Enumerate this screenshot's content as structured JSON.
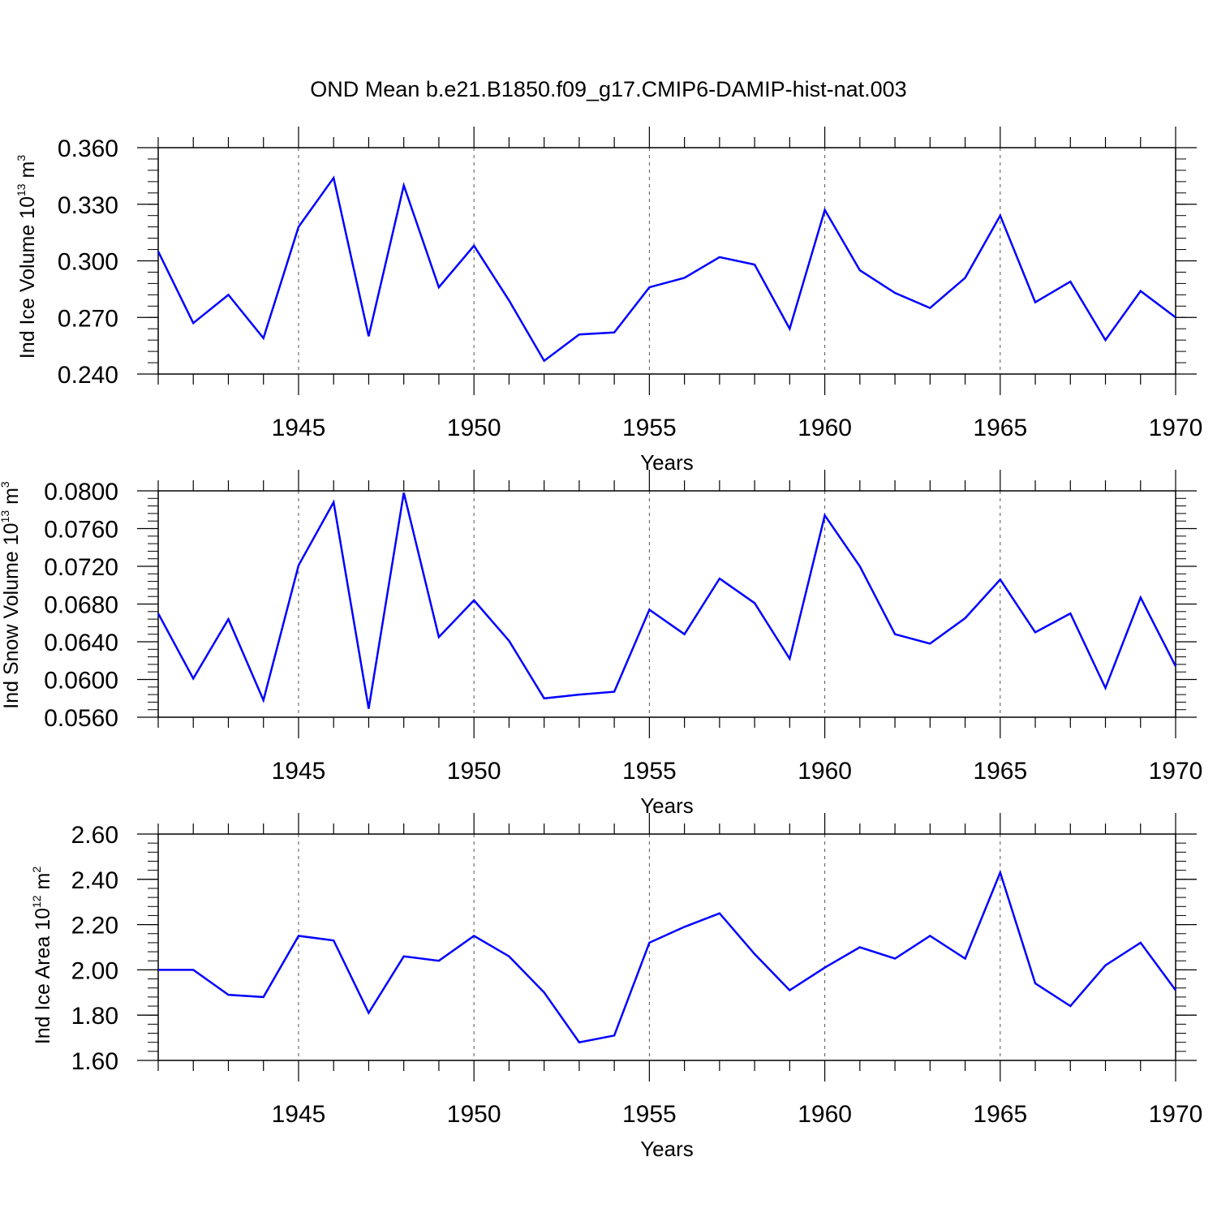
{
  "title": "OND Mean b.e21.B1850.f09_g17.CMIP6-DAMIP-hist-nat.003",
  "colors": {
    "line": "#0000ff",
    "axis": "#000000",
    "grid": "#555555"
  },
  "chart_data": [
    {
      "type": "line",
      "title": "OND Mean b.e21.B1850.f09_g17.CMIP6-DAMIP-hist-nat.003",
      "xlabel": "Years",
      "ylabel": {
        "prefix": "Ind Ice Volume 10",
        "exp": "13",
        "unit": " m",
        "unit_exp": "3"
      },
      "xlim": [
        1941,
        1970
      ],
      "ylim": [
        0.24,
        0.36
      ],
      "yticks": [
        "0.240",
        "0.270",
        "0.300",
        "0.330",
        "0.360"
      ],
      "yticks_values": [
        0.24,
        0.27,
        0.3,
        0.33,
        0.36
      ],
      "y_minor_step": 0.006,
      "xticks": [
        "1945",
        "1950",
        "1955",
        "1960",
        "1965",
        "1970"
      ],
      "xticks_values": [
        1945,
        1950,
        1955,
        1960,
        1965,
        1970
      ],
      "x": [
        1941,
        1942,
        1943,
        1944,
        1945,
        1946,
        1947,
        1948,
        1949,
        1950,
        1951,
        1952,
        1953,
        1954,
        1955,
        1956,
        1957,
        1958,
        1959,
        1960,
        1961,
        1962,
        1963,
        1964,
        1965,
        1966,
        1967,
        1968,
        1969,
        1970
      ],
      "values": [
        0.305,
        0.267,
        0.282,
        0.259,
        0.318,
        0.344,
        0.26,
        0.34,
        0.286,
        0.308,
        0.279,
        0.247,
        0.261,
        0.262,
        0.286,
        0.291,
        0.302,
        0.298,
        0.264,
        0.327,
        0.295,
        0.283,
        0.275,
        0.291,
        0.324,
        0.278,
        0.289,
        0.258,
        0.284,
        0.27
      ]
    },
    {
      "type": "line",
      "xlabel": "Years",
      "ylabel": {
        "prefix": "Ind Snow Volume 10",
        "exp": "13",
        "unit": " m",
        "unit_exp": "3"
      },
      "xlim": [
        1941,
        1970
      ],
      "ylim": [
        0.056,
        0.08
      ],
      "yticks": [
        "0.0560",
        "0.0600",
        "0.0640",
        "0.0680",
        "0.0720",
        "0.0760",
        "0.0800"
      ],
      "yticks_values": [
        0.056,
        0.06,
        0.064,
        0.068,
        0.072,
        0.076,
        0.08
      ],
      "y_minor_step": 0.0008,
      "xticks": [
        "1945",
        "1950",
        "1955",
        "1960",
        "1965",
        "1970"
      ],
      "xticks_values": [
        1945,
        1950,
        1955,
        1960,
        1965,
        1970
      ],
      "x": [
        1941,
        1942,
        1943,
        1944,
        1945,
        1946,
        1947,
        1948,
        1949,
        1950,
        1951,
        1952,
        1953,
        1954,
        1955,
        1956,
        1957,
        1958,
        1959,
        1960,
        1961,
        1962,
        1963,
        1964,
        1965,
        1966,
        1967,
        1968,
        1969,
        1970
      ],
      "values": [
        0.067,
        0.0601,
        0.0664,
        0.0578,
        0.0721,
        0.0788,
        0.0569,
        0.0798,
        0.0645,
        0.0684,
        0.0641,
        0.058,
        0.0584,
        0.0587,
        0.0674,
        0.0648,
        0.0707,
        0.0681,
        0.0622,
        0.0774,
        0.072,
        0.0648,
        0.0638,
        0.0665,
        0.0706,
        0.065,
        0.067,
        0.0591,
        0.0687,
        0.0614
      ]
    },
    {
      "type": "line",
      "xlabel": "Years",
      "ylabel": {
        "prefix": "Ind Ice Area 10",
        "exp": "12",
        "unit": " m",
        "unit_exp": "2"
      },
      "xlim": [
        1941,
        1970
      ],
      "ylim": [
        1.6,
        2.6
      ],
      "yticks": [
        "1.60",
        "1.80",
        "2.00",
        "2.20",
        "2.40",
        "2.60"
      ],
      "yticks_values": [
        1.6,
        1.8,
        2.0,
        2.2,
        2.4,
        2.6
      ],
      "y_minor_step": 0.04,
      "xticks": [
        "1945",
        "1950",
        "1955",
        "1960",
        "1965",
        "1970"
      ],
      "xticks_values": [
        1945,
        1950,
        1955,
        1960,
        1965,
        1970
      ],
      "x": [
        1941,
        1942,
        1943,
        1944,
        1945,
        1946,
        1947,
        1948,
        1949,
        1950,
        1951,
        1952,
        1953,
        1954,
        1955,
        1956,
        1957,
        1958,
        1959,
        1960,
        1961,
        1962,
        1963,
        1964,
        1965,
        1966,
        1967,
        1968,
        1969,
        1970
      ],
      "values": [
        2.0,
        2.0,
        1.89,
        1.88,
        2.15,
        2.13,
        1.81,
        2.06,
        2.04,
        2.15,
        2.06,
        1.9,
        1.68,
        1.71,
        2.12,
        2.19,
        2.25,
        2.07,
        1.91,
        2.01,
        2.1,
        2.05,
        2.15,
        2.05,
        2.43,
        1.94,
        1.84,
        2.02,
        2.12,
        1.91
      ]
    }
  ]
}
